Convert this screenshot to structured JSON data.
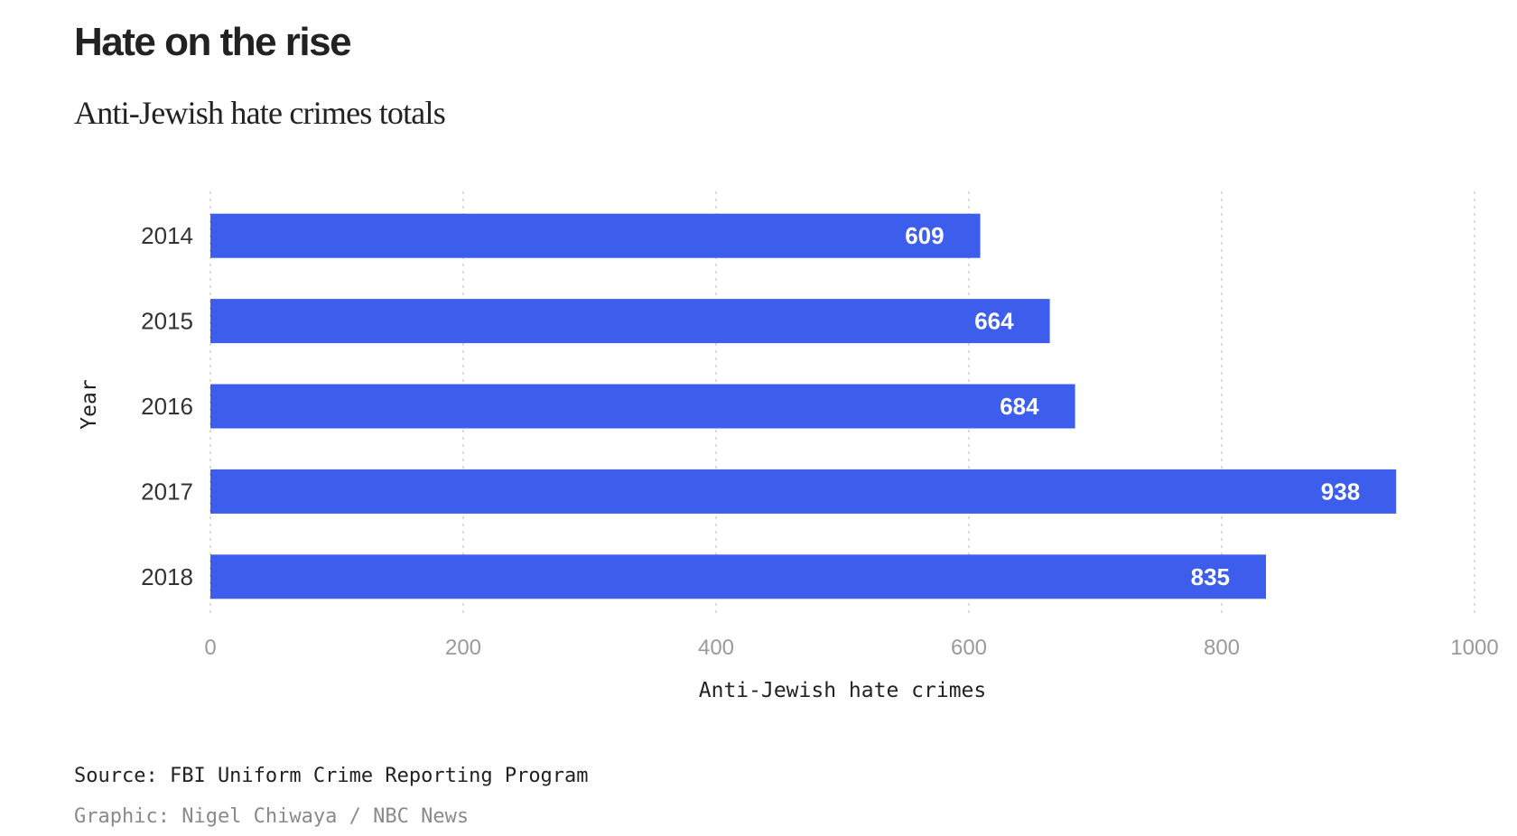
{
  "chart_data": {
    "type": "bar",
    "orientation": "horizontal",
    "title": "Hate on the rise",
    "subtitle": "Anti-Jewish hate crimes totals",
    "categories": [
      "2014",
      "2015",
      "2016",
      "2017",
      "2018"
    ],
    "values": [
      609,
      664,
      684,
      938,
      835
    ],
    "data_labels": [
      "609",
      "664",
      "684",
      "938",
      "835"
    ],
    "xlabel": "Anti-Jewish hate crimes",
    "ylabel": "Year",
    "xlim": [
      0,
      1000
    ],
    "x_ticks": [
      "0",
      "200",
      "400",
      "600",
      "800",
      "1000"
    ],
    "grid": "vertical dotted",
    "bar_color": "#3d5ded",
    "label_color": "#ffffff"
  },
  "footer": {
    "source": "Source: FBI Uniform Crime Reporting Program",
    "credit": "Graphic: Nigel Chiwaya / NBC News"
  }
}
